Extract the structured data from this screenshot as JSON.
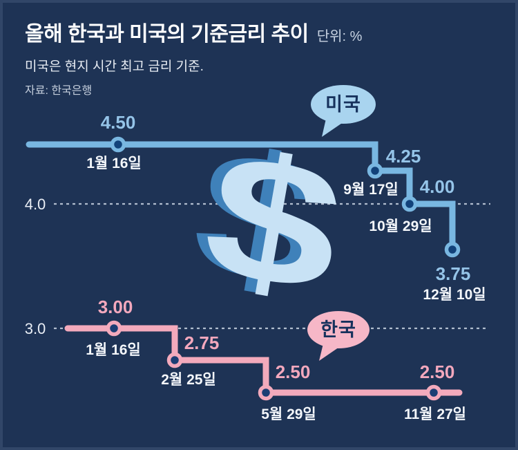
{
  "header": {
    "title": "올해 한국과 미국의 기준금리 추이",
    "unit_label": "단위: %",
    "subtitle": "미국은 현지 시간 최고 금리 기준.",
    "source": "자료: 한국은행"
  },
  "chart_data": {
    "type": "line",
    "variant": "step-timeline",
    "title": "올해 한국과 미국의 기준금리 추이",
    "unit": "%",
    "background": "#1e3355",
    "gridline_color": "#c3cedd",
    "axis_label_color": "#e9eef5",
    "date_label_color": "#f4f7fb",
    "gridlines": [
      {
        "label": "4.0",
        "value": 4.0
      },
      {
        "label": "3.0",
        "value": 3.0
      }
    ],
    "series": [
      {
        "name": "미국",
        "line_color": "#79b7e1",
        "marker_fill": "#12427a",
        "value_label_color": "#95c4e8",
        "bubble_fill": "#a9d4ef",
        "bubble_text_color": "#16315c",
        "points": [
          {
            "date": "1월 16일",
            "value": 4.5,
            "value_label": "4.50"
          },
          {
            "date": "9월 17일",
            "value": 4.25,
            "value_label": "4.25"
          },
          {
            "date": "10월 29일",
            "value": 4.0,
            "value_label": "4.00"
          },
          {
            "date": "12월 10일",
            "value": 3.75,
            "value_label": "3.75"
          }
        ]
      },
      {
        "name": "한국",
        "line_color": "#f3aabc",
        "marker_fill": "#1c3e74",
        "value_label_color": "#f3a8bd",
        "bubble_fill": "#f6b7c7",
        "bubble_text_color": "#16315c",
        "points": [
          {
            "date": "1월 16일",
            "value": 3.0,
            "value_label": "3.00"
          },
          {
            "date": "2월 25일",
            "value": 2.75,
            "value_label": "2.75"
          },
          {
            "date": "5월 29일",
            "value": 2.5,
            "value_label": "2.50"
          },
          {
            "date": "11월 27일",
            "value": 2.5,
            "value_label": "2.50"
          }
        ]
      }
    ],
    "decoration": {
      "name": "dollar-sign",
      "glyph": "$",
      "front_color": "#c8e2f5",
      "back_color": "#3f81ba"
    }
  }
}
